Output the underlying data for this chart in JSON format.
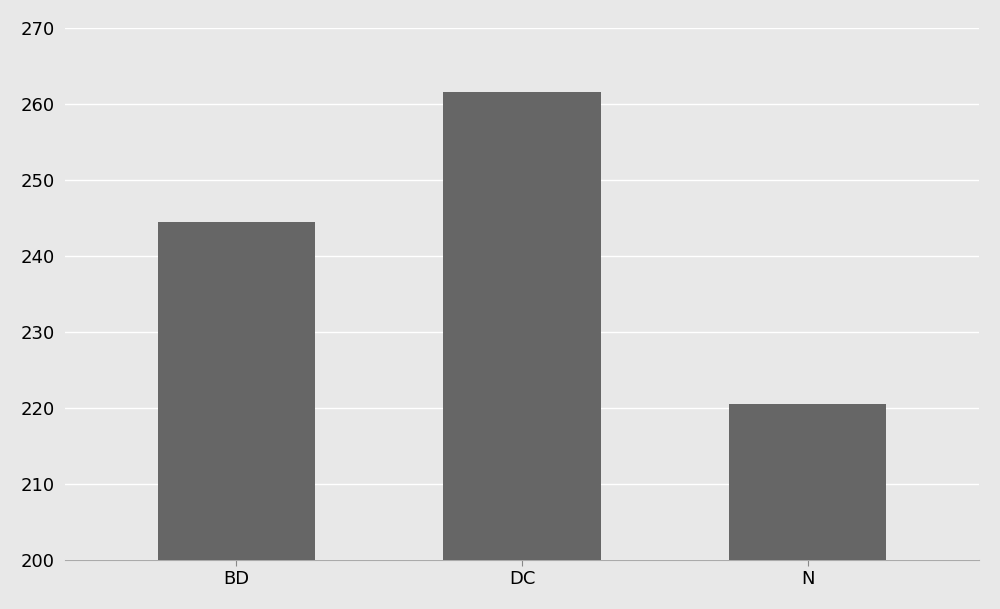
{
  "categories": [
    "BD",
    "DC",
    "N"
  ],
  "values": [
    244.5,
    261.5,
    220.5
  ],
  "bar_color": "#666666",
  "ylim": [
    200,
    270
  ],
  "yticks": [
    200,
    210,
    220,
    230,
    240,
    250,
    260,
    270
  ],
  "background_color": "#e8e8e8",
  "plot_bg_color": "#e8e8e8",
  "bar_width": 0.55,
  "grid_color": "#ffffff",
  "tick_fontsize": 13,
  "label_fontsize": 13
}
